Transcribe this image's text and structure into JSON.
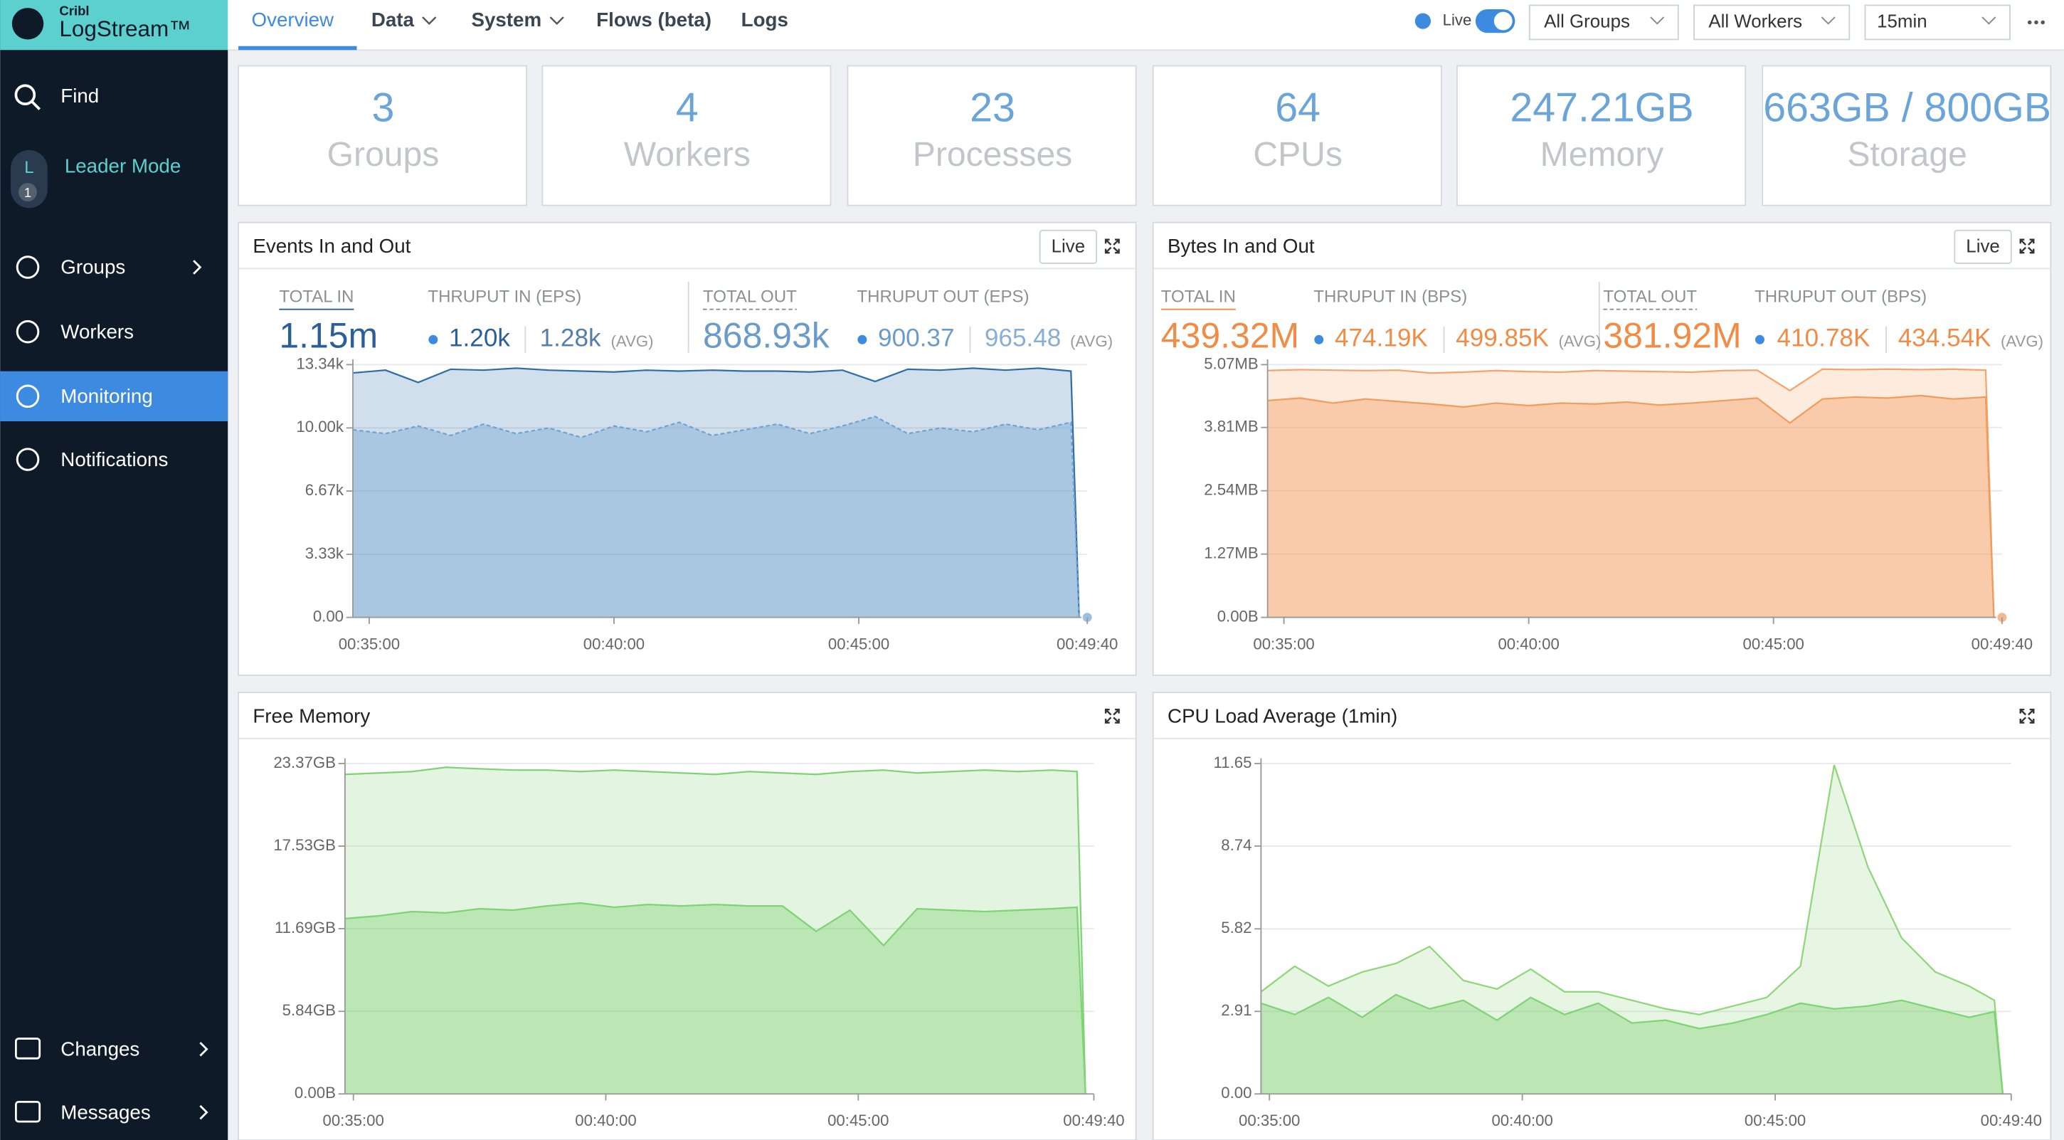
{
  "sidebar": {
    "brand": "Cribl",
    "product": "LogStream™",
    "find": "Find",
    "leader": {
      "badge": "L",
      "count": "1",
      "label": "Leader Mode"
    },
    "items": [
      "Groups",
      "Workers",
      "Monitoring",
      "Notifications"
    ],
    "bottom_items": [
      "Changes",
      "Messages"
    ]
  },
  "topnav": {
    "tabs": [
      "Overview",
      "Data",
      "System",
      "Flows (beta)",
      "Logs"
    ],
    "live": "Live",
    "groups": "All Groups",
    "workers": "All Workers",
    "range": "15min"
  },
  "stats": [
    {
      "value": "3",
      "label": "Groups"
    },
    {
      "value": "4",
      "label": "Workers"
    },
    {
      "value": "23",
      "label": "Processes"
    },
    {
      "value": "64",
      "label": "CPUs"
    },
    {
      "value": "247.21GB",
      "label": "Memory"
    },
    {
      "value": "663GB / 800GB",
      "label": "Storage"
    }
  ],
  "charts": [
    {
      "type": "area",
      "title": "Events In and Out",
      "live_button": "Live",
      "blocks": [
        {
          "label": "TOTAL IN",
          "value": "1.15m"
        },
        {
          "label": "THRUPUT IN (EPS)",
          "current": "1.20k",
          "average": "1.28k",
          "avg_label": "(AVG)"
        },
        {
          "label": "TOTAL OUT",
          "value": "868.93k"
        },
        {
          "label": "THRUPUT OUT (EPS)",
          "current": "900.37",
          "average": "965.48",
          "avg_label": "(AVG)"
        }
      ],
      "xlim": [
        2080,
        2980
      ],
      "xticks": [
        {
          "value": 2100,
          "label": "00:35:00"
        },
        {
          "value": 2400,
          "label": "00:40:00"
        },
        {
          "value": 2700,
          "label": "00:45:00"
        },
        {
          "value": 2980,
          "label": "00:49:40"
        }
      ],
      "ylim": [
        0,
        13340
      ],
      "yticks": [
        {
          "value": 0,
          "label": "0.00"
        },
        {
          "value": 3330,
          "label": "3.33k"
        },
        {
          "value": 6670,
          "label": "6.67k"
        },
        {
          "value": 10000,
          "label": "10.00k"
        },
        {
          "value": 13340,
          "label": "13.34k"
        }
      ],
      "x": [
        2080,
        2120,
        2160,
        2200,
        2240,
        2280,
        2320,
        2360,
        2400,
        2440,
        2480,
        2520,
        2560,
        2600,
        2640,
        2680,
        2720,
        2760,
        2800,
        2840,
        2880,
        2920,
        2960,
        2970
      ],
      "series": [
        {
          "color": "#2e6da8",
          "values": [
            12900,
            13050,
            12400,
            13100,
            13050,
            13150,
            13050,
            13000,
            12950,
            13050,
            13000,
            13050,
            13000,
            13000,
            12950,
            13050,
            12450,
            13100,
            13050,
            13150,
            13050,
            13150,
            13000,
            0
          ]
        },
        {
          "color": "#6fa3d3",
          "dashed": true,
          "values": [
            9900,
            9700,
            10100,
            9600,
            10200,
            9700,
            10000,
            9500,
            10100,
            9800,
            10300,
            9600,
            9900,
            10200,
            9700,
            10100,
            10600,
            9700,
            10000,
            9800,
            10200,
            9900,
            10300,
            0
          ]
        }
      ]
    },
    {
      "type": "area",
      "title": "Bytes In and Out",
      "live_button": "Live",
      "blocks": [
        {
          "label": "TOTAL IN",
          "value": "439.32M"
        },
        {
          "label": "THRUPUT IN (BPS)",
          "current": "474.19K",
          "average": "499.85K",
          "avg_label": "(AVG)"
        },
        {
          "label": "TOTAL OUT",
          "value": "381.92M"
        },
        {
          "label": "THRUPUT OUT (BPS)",
          "current": "410.78K",
          "average": "434.54K",
          "avg_label": "(AVG)"
        }
      ],
      "xlim": [
        2080,
        2980
      ],
      "xticks": [
        {
          "value": 2100,
          "label": "00:35:00"
        },
        {
          "value": 2400,
          "label": "00:40:00"
        },
        {
          "value": 2700,
          "label": "00:45:00"
        },
        {
          "value": 2980,
          "label": "00:49:40"
        }
      ],
      "ylim": [
        0,
        5.07
      ],
      "yticks": [
        {
          "value": 0,
          "label": "0.00B"
        },
        {
          "value": 1.27,
          "label": "1.27MB"
        },
        {
          "value": 2.54,
          "label": "2.54MB"
        },
        {
          "value": 3.81,
          "label": "3.81MB"
        },
        {
          "value": 5.07,
          "label": "5.07MB"
        }
      ],
      "x": [
        2080,
        2120,
        2160,
        2200,
        2240,
        2280,
        2320,
        2360,
        2400,
        2440,
        2480,
        2520,
        2560,
        2600,
        2640,
        2680,
        2720,
        2760,
        2800,
        2840,
        2880,
        2920,
        2960,
        2970
      ],
      "series": [
        {
          "color": "#f5a36a",
          "values": [
            4.95,
            4.97,
            4.96,
            4.95,
            4.96,
            4.9,
            4.92,
            4.95,
            4.93,
            4.92,
            4.95,
            4.94,
            4.93,
            4.92,
            4.95,
            4.96,
            4.55,
            4.98,
            4.97,
            4.98,
            4.97,
            4.98,
            4.96,
            0
          ]
        },
        {
          "color": "#f29c5c",
          "values": [
            4.35,
            4.4,
            4.3,
            4.38,
            4.33,
            4.28,
            4.22,
            4.3,
            4.25,
            4.3,
            4.28,
            4.32,
            4.26,
            4.3,
            4.35,
            4.4,
            3.9,
            4.38,
            4.42,
            4.4,
            4.45,
            4.38,
            4.42,
            0
          ]
        }
      ]
    },
    {
      "type": "area",
      "title": "Free Memory",
      "xlim": [
        2090,
        2980
      ],
      "xticks": [
        {
          "value": 2100,
          "label": "00:35:00"
        },
        {
          "value": 2400,
          "label": "00:40:00"
        },
        {
          "value": 2700,
          "label": "00:45:00"
        },
        {
          "value": 2980,
          "label": "00:49:40"
        }
      ],
      "ylim": [
        0,
        23.37
      ],
      "yticks": [
        {
          "value": 0,
          "label": "0.00B"
        },
        {
          "value": 5.84,
          "label": "5.84GB"
        },
        {
          "value": 11.69,
          "label": "11.69GB"
        },
        {
          "value": 17.53,
          "label": "17.53GB"
        },
        {
          "value": 23.37,
          "label": "23.37GB"
        }
      ],
      "x": [
        2090,
        2130,
        2170,
        2210,
        2250,
        2290,
        2330,
        2370,
        2410,
        2450,
        2490,
        2530,
        2570,
        2610,
        2650,
        2690,
        2730,
        2770,
        2810,
        2850,
        2890,
        2930,
        2960,
        2970
      ],
      "series": [
        {
          "color": "#7ed374",
          "values": [
            22.6,
            22.7,
            22.8,
            23.1,
            23.0,
            22.9,
            22.9,
            22.8,
            22.9,
            22.8,
            22.7,
            22.6,
            22.8,
            22.7,
            22.6,
            22.8,
            22.9,
            22.7,
            22.8,
            22.9,
            22.8,
            22.9,
            22.8,
            0
          ]
        },
        {
          "color": "#7ed374",
          "values": [
            12.4,
            12.6,
            12.9,
            12.8,
            13.1,
            13.0,
            13.3,
            13.5,
            13.2,
            13.4,
            13.3,
            13.4,
            13.3,
            13.3,
            11.5,
            13.0,
            10.5,
            13.1,
            13.0,
            12.9,
            13.0,
            13.1,
            13.2,
            0
          ]
        }
      ]
    },
    {
      "type": "area",
      "title": "CPU Load Average (1min)",
      "xlim": [
        2090,
        2980
      ],
      "xticks": [
        {
          "value": 2100,
          "label": "00:35:00"
        },
        {
          "value": 2400,
          "label": "00:40:00"
        },
        {
          "value": 2700,
          "label": "00:45:00"
        },
        {
          "value": 2980,
          "label": "00:49:40"
        }
      ],
      "ylim": [
        0,
        11.65
      ],
      "yticks": [
        {
          "value": 0,
          "label": "0.00"
        },
        2.91,
        5.82,
        8.74,
        11.65
      ],
      "x": [
        2090,
        2130,
        2170,
        2210,
        2250,
        2290,
        2330,
        2370,
        2410,
        2450,
        2490,
        2530,
        2570,
        2610,
        2650,
        2690,
        2730,
        2770,
        2810,
        2850,
        2890,
        2930,
        2960,
        2970
      ],
      "series": [
        {
          "color": "#8fd67a",
          "values": [
            3.6,
            4.5,
            3.8,
            4.3,
            4.6,
            5.2,
            4.0,
            3.7,
            4.4,
            3.6,
            3.6,
            3.3,
            3.0,
            2.8,
            3.1,
            3.4,
            4.5,
            11.6,
            8.0,
            5.5,
            4.3,
            3.8,
            3.3,
            0
          ]
        },
        {
          "color": "#7ed374",
          "values": [
            3.2,
            2.8,
            3.4,
            2.7,
            3.5,
            3.0,
            3.3,
            2.6,
            3.4,
            2.8,
            3.2,
            2.5,
            2.6,
            2.3,
            2.5,
            2.8,
            3.2,
            3.0,
            3.1,
            3.3,
            3.0,
            2.7,
            2.9,
            0
          ]
        }
      ]
    }
  ]
}
